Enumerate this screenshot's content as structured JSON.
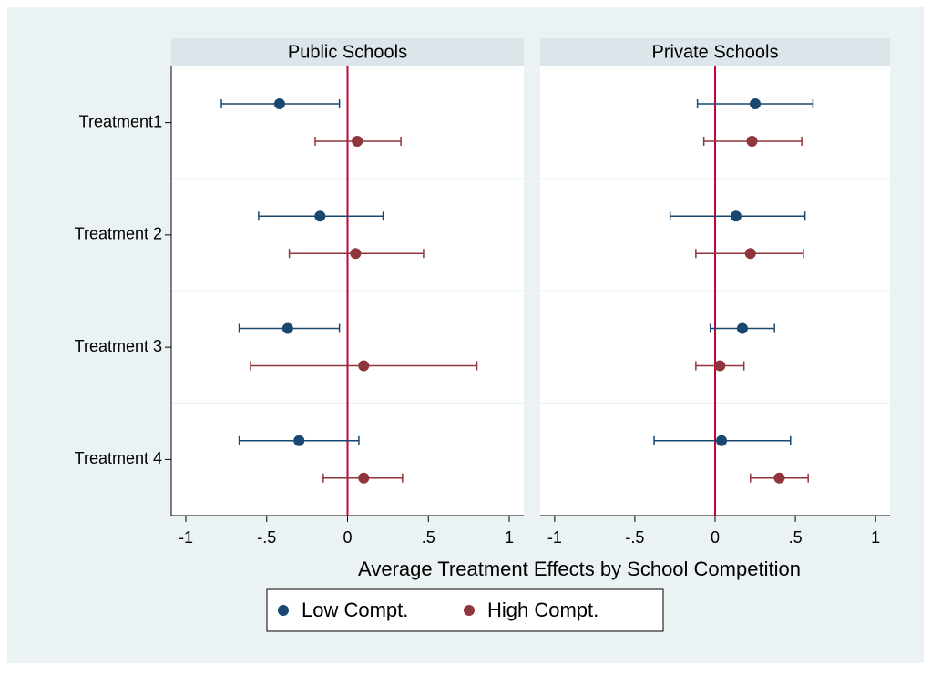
{
  "chart_data": {
    "type": "errorbar",
    "xlabel": "Average Treatment Effects by School Competition",
    "categories": [
      "Treatment1",
      "Treatment 2",
      "Treatment 3",
      "Treatment 4"
    ],
    "xlim": [
      -1.09,
      1.09
    ],
    "xticks": [
      {
        "value": -1,
        "label": "-1"
      },
      {
        "value": -0.5,
        "label": "-.5"
      },
      0,
      {
        "value": 0.5,
        "label": ".5"
      },
      1
    ],
    "refline": 0,
    "refline_color": "#c10534",
    "series": [
      {
        "name": "Low Compt.",
        "color": "#1a476f"
      },
      {
        "name": "High Compt.",
        "color": "#90353b"
      }
    ],
    "panels": [
      {
        "title": "Public Schools",
        "series": [
          {
            "values": [
              -0.42,
              -0.17,
              -0.37,
              -0.3
            ],
            "lower": [
              -0.78,
              -0.55,
              -0.67,
              -0.67
            ],
            "upper": [
              -0.05,
              0.22,
              -0.05,
              0.07
            ]
          },
          {
            "values": [
              0.06,
              0.05,
              0.1,
              0.1
            ],
            "lower": [
              -0.2,
              -0.36,
              -0.6,
              -0.15
            ],
            "upper": [
              0.33,
              0.47,
              0.8,
              0.34
            ]
          }
        ]
      },
      {
        "title": "Private Schools",
        "series": [
          {
            "values": [
              0.25,
              0.13,
              0.17,
              0.04
            ],
            "lower": [
              -0.11,
              -0.28,
              -0.03,
              -0.38
            ],
            "upper": [
              0.61,
              0.56,
              0.37,
              0.47
            ]
          },
          {
            "values": [
              0.23,
              0.22,
              0.03,
              0.4
            ],
            "lower": [
              -0.07,
              -0.12,
              -0.12,
              0.22
            ],
            "upper": [
              0.54,
              0.55,
              0.18,
              0.58
            ]
          }
        ]
      }
    ]
  }
}
